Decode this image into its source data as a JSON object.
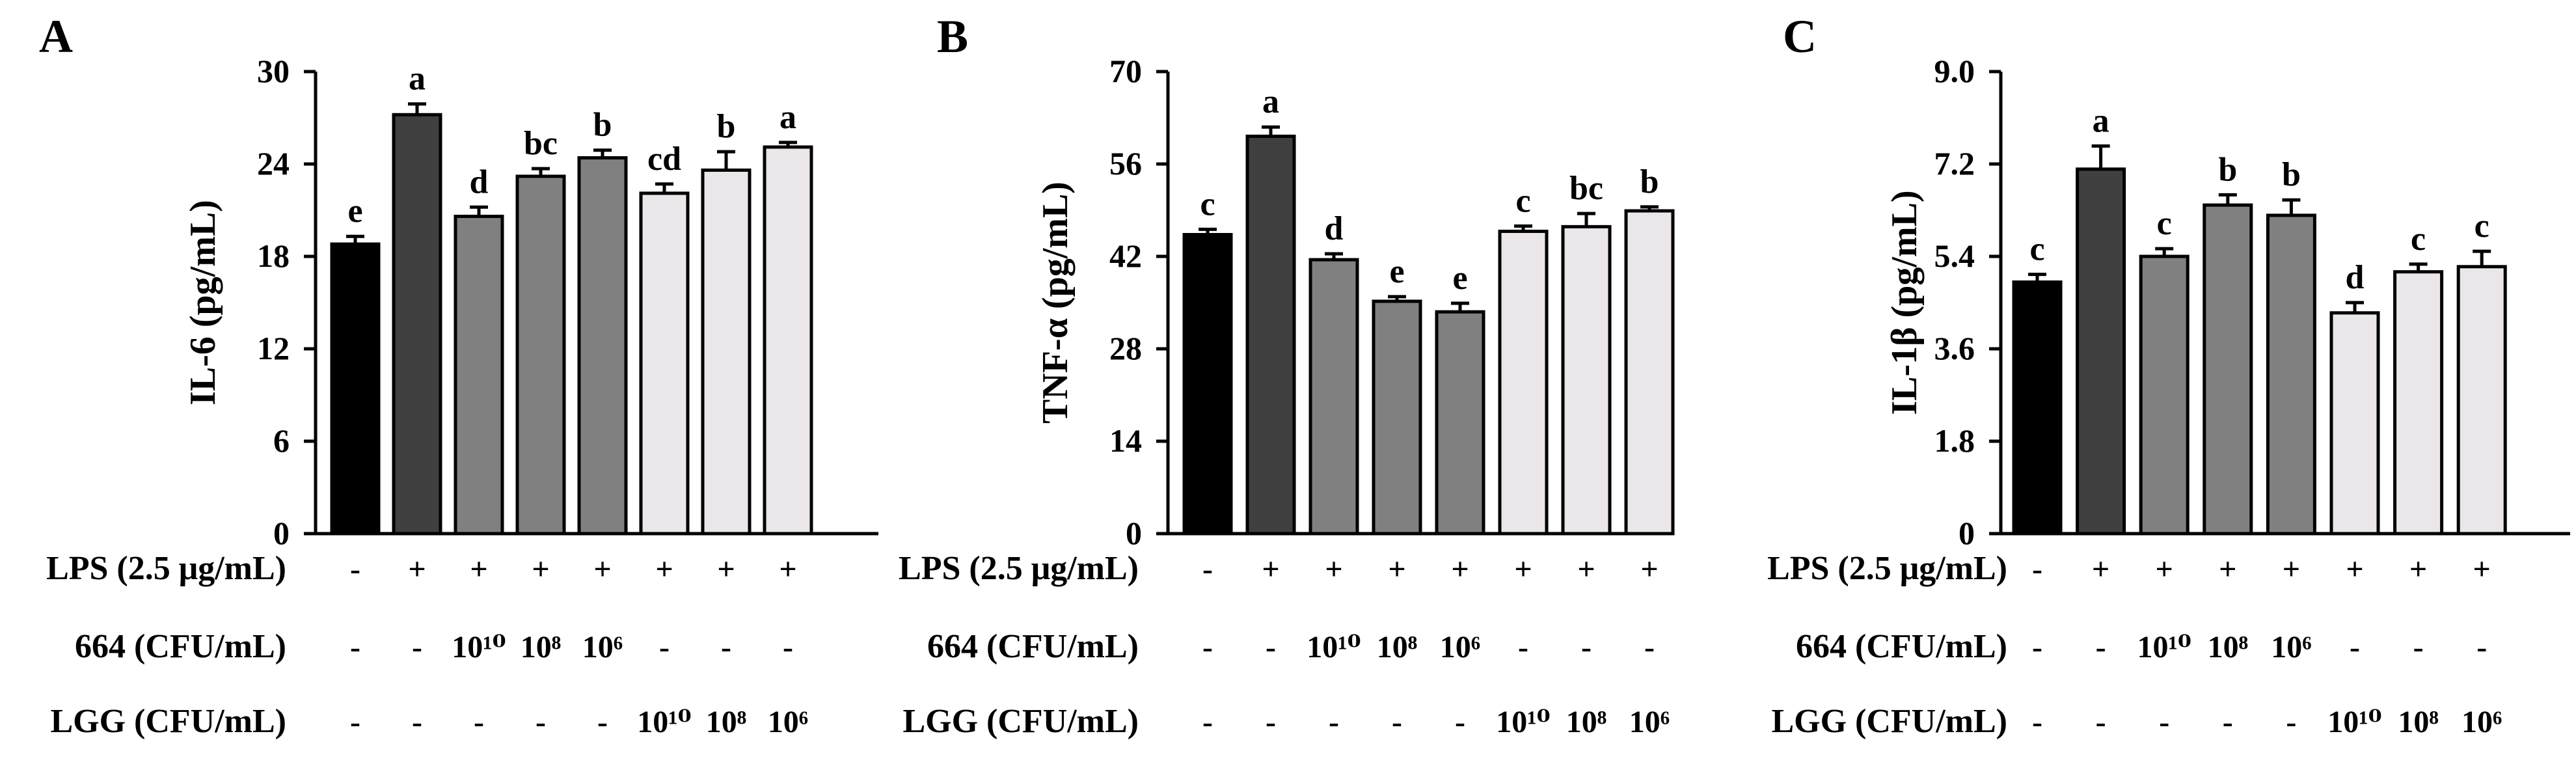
{
  "chart_data": [
    {
      "panel_label": "A",
      "type": "bar",
      "title": "",
      "xlabel": "",
      "ylabel": "IL-6 (pg/mL)",
      "ylim": [
        0,
        30
      ],
      "yticks": [
        "0",
        "6",
        "12",
        "18",
        "24",
        "30"
      ],
      "values": [
        18.8,
        27.2,
        20.6,
        23.2,
        24.4,
        22.1,
        23.6,
        25.1
      ],
      "errors": [
        0.5,
        0.7,
        0.6,
        0.5,
        0.5,
        0.6,
        1.2,
        0.3
      ],
      "letters": [
        "e",
        "a",
        "d",
        "bc",
        "b",
        "cd",
        "b",
        "a"
      ],
      "treatment_rows": [
        {
          "label": "LPS (2.5 μg/mL)",
          "cells": [
            "-",
            "+",
            "+",
            "+",
            "+",
            "+",
            "+",
            "+"
          ]
        },
        {
          "label": "664 (CFU/mL)",
          "cells": [
            "-",
            "-",
            "10¹⁰",
            "10⁸",
            "10⁶",
            "-",
            "-",
            "-"
          ]
        },
        {
          "label": "LGG (CFU/mL)",
          "cells": [
            "-",
            "-",
            "-",
            "-",
            "-",
            "10¹⁰",
            "10⁸",
            "10⁶"
          ]
        }
      ]
    },
    {
      "panel_label": "B",
      "type": "bar",
      "title": "",
      "xlabel": "",
      "ylabel": "TNF-α (pg/mL)",
      "ylim": [
        0,
        70
      ],
      "yticks": [
        "0",
        "14",
        "28",
        "42",
        "56",
        "70"
      ],
      "values": [
        45.3,
        60.2,
        41.5,
        35.2,
        33.6,
        45.8,
        46.5,
        48.9
      ],
      "errors": [
        0.8,
        1.4,
        0.9,
        0.7,
        1.3,
        0.8,
        2.0,
        0.6
      ],
      "letters": [
        "c",
        "a",
        "d",
        "e",
        "e",
        "c",
        "bc",
        "b"
      ],
      "treatment_rows": [
        {
          "label": "LPS (2.5 μg/mL)",
          "cells": [
            "-",
            "+",
            "+",
            "+",
            "+",
            "+",
            "+",
            "+"
          ]
        },
        {
          "label": "664 (CFU/mL)",
          "cells": [
            "-",
            "-",
            "10¹⁰",
            "10⁸",
            "10⁶",
            "-",
            "-",
            "-"
          ]
        },
        {
          "label": "LGG (CFU/mL)",
          "cells": [
            "-",
            "-",
            "-",
            "-",
            "-",
            "10¹⁰",
            "10⁸",
            "10⁶"
          ]
        }
      ]
    },
    {
      "panel_label": "C",
      "type": "bar",
      "title": "",
      "xlabel": "",
      "ylabel": "IL-1β (pg/mL)",
      "ylim": [
        0,
        9.0
      ],
      "yticks": [
        "0",
        "1.8",
        "3.6",
        "5.4",
        "7.2",
        "9.0"
      ],
      "values": [
        4.9,
        7.1,
        5.4,
        6.4,
        6.2,
        4.3,
        5.1,
        5.2
      ],
      "errors": [
        0.15,
        0.45,
        0.15,
        0.2,
        0.3,
        0.2,
        0.15,
        0.3
      ],
      "letters": [
        "c",
        "a",
        "c",
        "b",
        "b",
        "d",
        "c",
        "c"
      ],
      "treatment_rows": [
        {
          "label": "LPS (2.5 μg/mL)",
          "cells": [
            "-",
            "+",
            "+",
            "+",
            "+",
            "+",
            "+",
            "+"
          ]
        },
        {
          "label": "664 (CFU/mL)",
          "cells": [
            "-",
            "-",
            "10¹⁰",
            "10⁸",
            "10⁶",
            "-",
            "-",
            "-"
          ]
        },
        {
          "label": "LGG (CFU/mL)",
          "cells": [
            "-",
            "-",
            "-",
            "-",
            "-",
            "10¹⁰",
            "10⁸",
            "10⁶"
          ]
        }
      ]
    }
  ],
  "colors": {
    "bars": [
      "#000000",
      "#404040",
      "#808080",
      "#808080",
      "#808080",
      "#ebe6ea",
      "#ebe6ea",
      "#ebe6ea"
    ],
    "axis": "#000000"
  }
}
